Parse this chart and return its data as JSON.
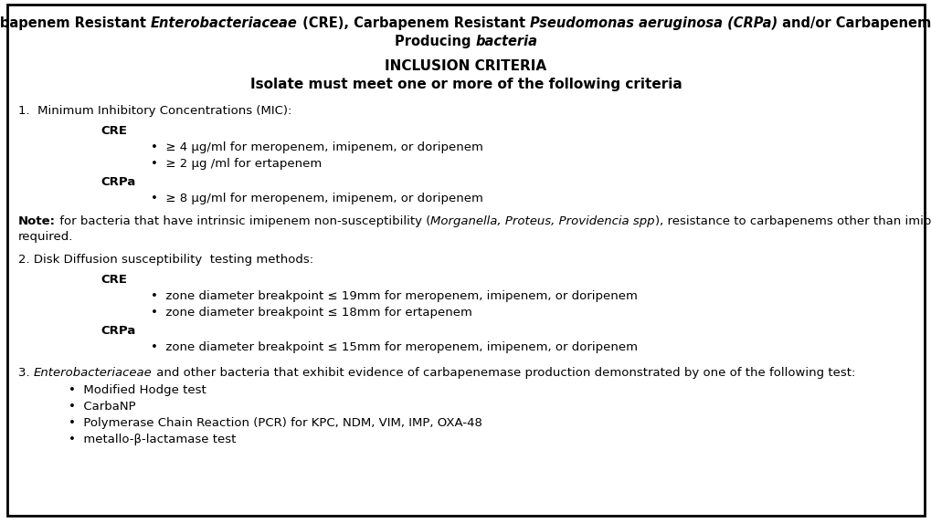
{
  "bg_color": "#ffffff",
  "border_color": "#000000",
  "title_line1_parts": [
    {
      "text": "Carbapenem Resistant ",
      "bold": true,
      "italic": false
    },
    {
      "text": "Enterobacteriaceae",
      "bold": true,
      "italic": true
    },
    {
      "text": " (CRE), Carbapenem Resistant ",
      "bold": true,
      "italic": false
    },
    {
      "text": "Pseudomonas aeruginosa (CRPa)",
      "bold": true,
      "italic": true
    },
    {
      "text": " and/or Carbapenemase",
      "bold": true,
      "italic": false
    }
  ],
  "title_line2_parts": [
    {
      "text": "Producing ",
      "bold": true,
      "italic": false
    },
    {
      "text": "bacteria",
      "bold": true,
      "italic": true
    }
  ],
  "inclusion_header": "INCLUSION CRITERIA",
  "inclusion_subheader": "Isolate must meet one or more of the following criteria",
  "section1_header": "1.  Minimum Inhibitory Concentrations (MIC):",
  "section1_cre_label": "CRE",
  "section1_cre_bullets": [
    "•  ≥ 4 μg/ml for meropenem, imipenem, or doripenem",
    "•  ≥ 2 μg /ml for ertapenem"
  ],
  "section1_crpa_label": "CRPa",
  "section1_crpa_bullets": [
    "•  ≥ 8 μg/ml for meropenem, imipenem, or doripenem"
  ],
  "note_bold": "Note:",
  "note_normal": " for bacteria that have intrinsic imipenem non-susceptibility (",
  "note_italic": "Morganella, Proteus, Providencia spp",
  "note_end": "), resistance to carbapenems other than imipenem is",
  "note_line2": "required.",
  "section2_header": "2. Disk Diffusion susceptibility  testing methods:",
  "section2_cre_label": "CRE",
  "section2_cre_bullets": [
    "•  zone diameter breakpoint ≤ 19mm for meropenem, imipenem, or doripenem",
    "•  zone diameter breakpoint ≤ 18mm for ertapenem"
  ],
  "section2_crpa_label": "CRPa",
  "section2_crpa_bullets": [
    "•  zone diameter breakpoint ≤ 15mm for meropenem, imipenem, or doripenem"
  ],
  "section3_number": "3. ",
  "section3_italic": "Enterobacteriaceae",
  "section3_text": " and other bacteria that exhibit evidence of carbapenemase production demonstrated by one of the following test:",
  "section3_bullets": [
    "•  Modified Hodge test",
    "•  CarbaNP",
    "•  Polymerase Chain Reaction (PCR) for KPC, NDM, VIM, IMP, OXA-48",
    "•  metallo-β-lactamase test"
  ],
  "font_size": 9.5,
  "title_font_size": 10.5,
  "header_font_size": 11.0
}
